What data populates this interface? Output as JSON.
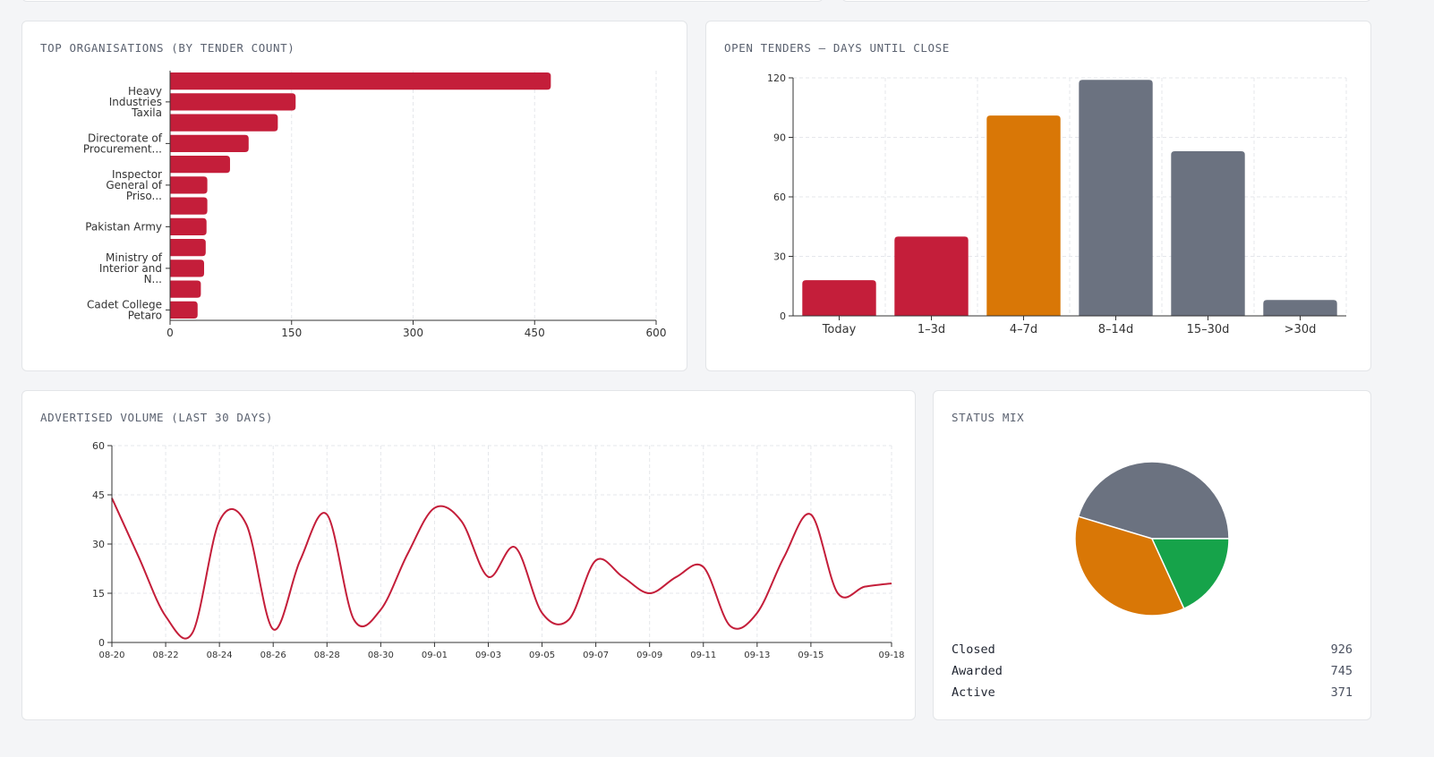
{
  "colors": {
    "crimson": "#c41e3a",
    "orange": "#d97706",
    "slate": "#6b7280",
    "green": "#16a34a",
    "grid": "#e5e7eb",
    "axis": "#333333"
  },
  "cards": {
    "top_orgs": {
      "title": "TOP ORGANISATIONS (BY TENDER COUNT)"
    },
    "days_until_close": {
      "title": "OPEN TENDERS — DAYS UNTIL CLOSE"
    },
    "advertised_volume": {
      "title": "ADVERTISED VOLUME (LAST 30 DAYS)"
    },
    "status_mix": {
      "title": "STATUS MIX"
    }
  },
  "chart_data": [
    {
      "id": "top_orgs",
      "type": "bar",
      "orientation": "horizontal",
      "title": "TOP ORGANISATIONS (BY TENDER COUNT)",
      "categories": [
        "",
        "Heavy Industries Taxila",
        "",
        "Directorate of Procurement...",
        "",
        "Inspector General of Priso...",
        "",
        "Pakistan Army",
        "",
        "Ministry of Interior and N...",
        "",
        "Cadet College Petaro"
      ],
      "tick_lines": [
        [
          "Heavy",
          "Industries",
          "Taxila"
        ],
        [
          "Directorate of",
          "Procurement..."
        ],
        [
          "Inspector",
          "General of",
          "Priso..."
        ],
        [
          "Pakistan Army"
        ],
        [
          "Ministry of",
          "Interior and",
          "N..."
        ],
        [
          "Cadet College",
          "Petaro"
        ]
      ],
      "values": [
        470,
        155,
        133,
        97,
        74,
        46,
        46,
        45,
        44,
        42,
        38,
        34
      ],
      "xlim": [
        0,
        600
      ],
      "xticks": [
        0,
        150,
        300,
        450,
        600
      ],
      "grid": true,
      "color": "#c41e3a"
    },
    {
      "id": "days_until_close",
      "type": "bar",
      "title": "OPEN TENDERS — DAYS UNTIL CLOSE",
      "categories": [
        "Today",
        "1–3d",
        "4–7d",
        "8–14d",
        "15–30d",
        ">30d"
      ],
      "values": [
        18,
        40,
        101,
        119,
        83,
        8
      ],
      "colors": [
        "#c41e3a",
        "#c41e3a",
        "#d97706",
        "#6b7280",
        "#6b7280",
        "#6b7280"
      ],
      "ylim": [
        0,
        120
      ],
      "yticks": [
        0,
        30,
        60,
        90,
        120
      ],
      "grid": true
    },
    {
      "id": "advertised_volume",
      "type": "line",
      "title": "ADVERTISED VOLUME (LAST 30 DAYS)",
      "x": [
        "08-20",
        "08-21",
        "08-22",
        "08-23",
        "08-24",
        "08-25",
        "08-26",
        "08-27",
        "08-28",
        "08-29",
        "08-30",
        "08-31",
        "09-01",
        "09-02",
        "09-03",
        "09-04",
        "09-05",
        "09-06",
        "09-07",
        "09-08",
        "09-09",
        "09-10",
        "09-11",
        "09-12",
        "09-13",
        "09-14",
        "09-15",
        "09-16",
        "09-17",
        "09-18"
      ],
      "values": [
        44,
        26,
        8,
        3,
        37,
        36,
        4,
        25,
        39,
        7,
        10,
        27,
        41,
        37,
        20,
        29,
        9,
        7,
        25,
        20,
        15,
        20,
        23,
        5,
        9,
        26,
        39,
        15,
        17,
        18
      ],
      "xticks": [
        "08-20",
        "08-22",
        "08-24",
        "08-26",
        "08-28",
        "08-30",
        "09-01",
        "09-03",
        "09-05",
        "09-07",
        "09-09",
        "09-11",
        "09-13",
        "09-15",
        "09-18"
      ],
      "ylim": [
        0,
        60
      ],
      "yticks": [
        0,
        15,
        30,
        45,
        60
      ],
      "grid": true,
      "color": "#c41e3a"
    },
    {
      "id": "status_mix",
      "type": "pie",
      "title": "STATUS MIX",
      "labels": [
        "Closed",
        "Awarded",
        "Active"
      ],
      "values": [
        926,
        745,
        371
      ],
      "colors": [
        "#6b7280",
        "#d97706",
        "#16a34a"
      ],
      "legend": "bottom"
    }
  ],
  "legend_values": [
    "926",
    "745",
    "371"
  ]
}
